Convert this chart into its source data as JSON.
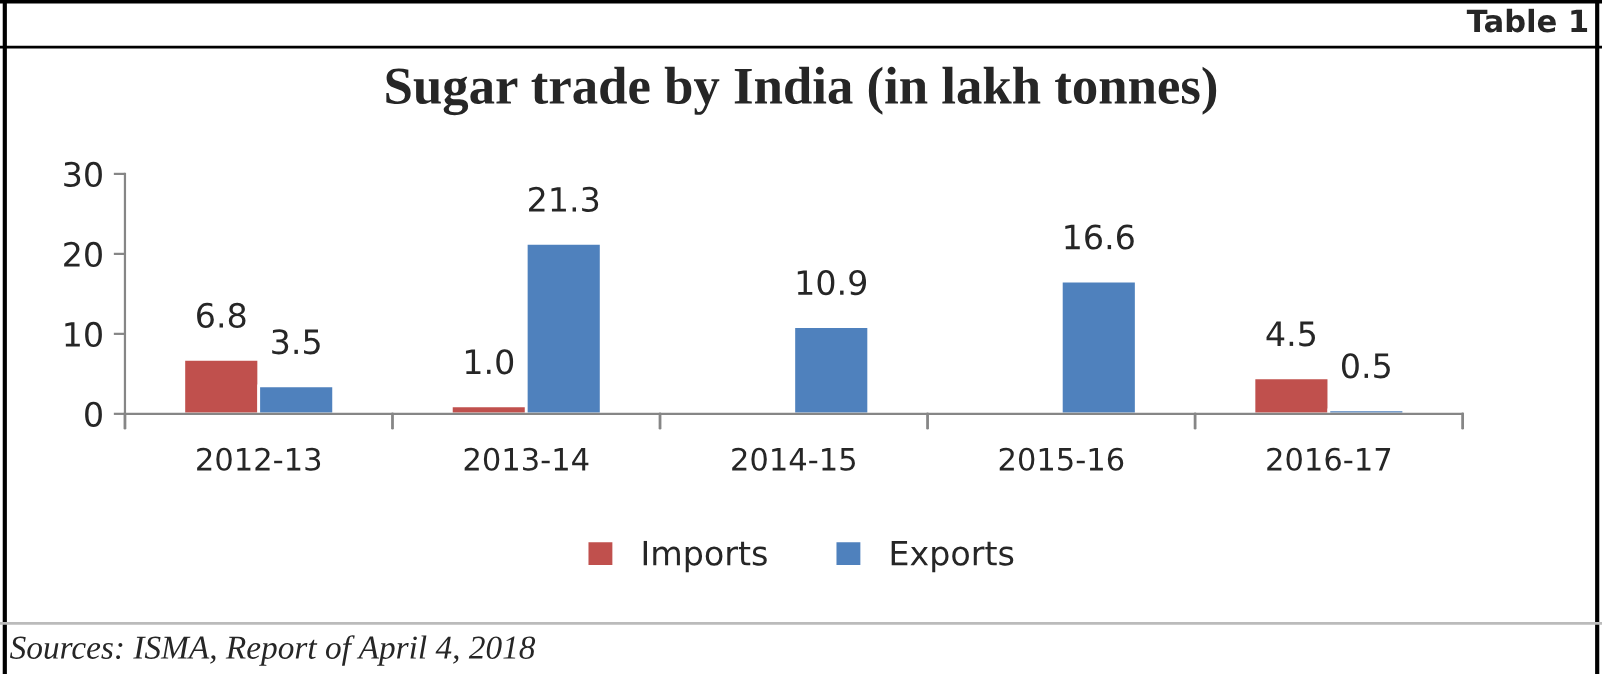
{
  "chart_data": {
    "type": "bar",
    "title": "Sugar trade by India (in lakh tonnes)",
    "categories": [
      "2012-13",
      "2013-14",
      "2014-15",
      "2015-16",
      "2016-17"
    ],
    "series": [
      {
        "name": "Imports",
        "color": "#c0504d",
        "values": [
          6.8,
          1.0,
          null,
          null,
          4.5
        ],
        "value_labels": [
          "6.8",
          "1.0",
          null,
          null,
          "4.5"
        ]
      },
      {
        "name": "Exports",
        "color": "#4f81bd",
        "values": [
          3.5,
          21.3,
          10.9,
          16.6,
          0.5
        ],
        "value_labels": [
          "3.5",
          "21.3",
          "10.9",
          "16.6",
          "0.5"
        ]
      }
    ],
    "ylim": [
      0,
      30
    ],
    "yticks": [
      0,
      10,
      20,
      30
    ],
    "grid": false,
    "legend": "bottom",
    "annotations": [
      "Table 1",
      "Sources: ISMA, Report of April 4, 2018"
    ]
  }
}
